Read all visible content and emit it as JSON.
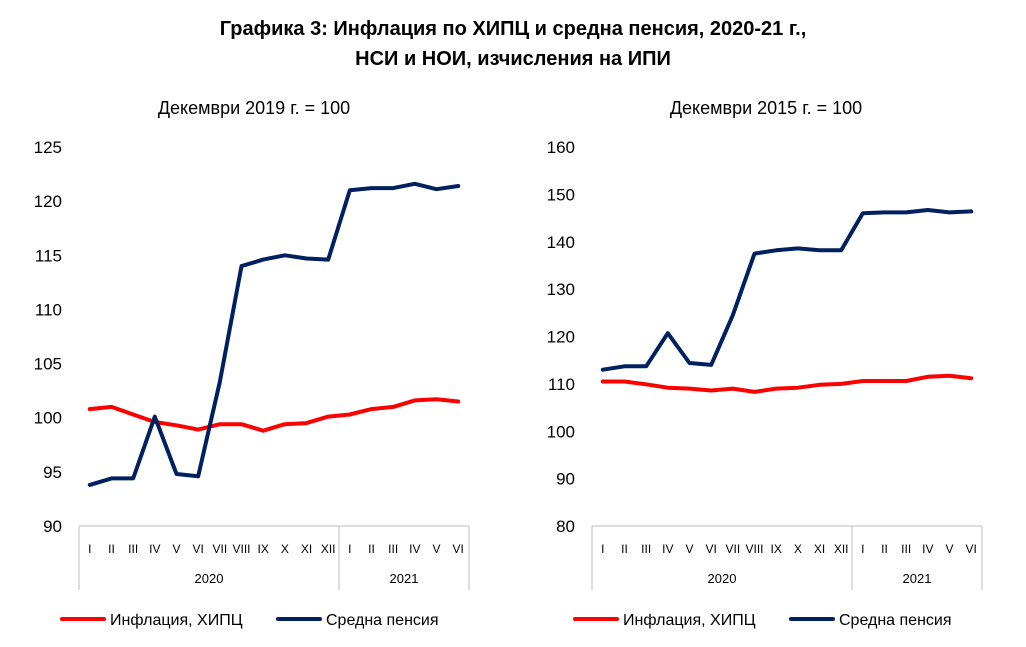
{
  "title_line1": "Графика 3: Инфлация по ХИПЦ и средна пенсия, 2020-21 г.,",
  "title_line2": "НСИ и НОИ, изчисления на ИПИ",
  "colors": {
    "inflation": "#ff0000",
    "pension": "#002060"
  },
  "chart_data": [
    {
      "type": "line",
      "subtitle": "Декември 2019 г. = 100",
      "ylim": [
        90,
        125
      ],
      "yticks": [
        "90",
        "95",
        "100",
        "105",
        "110",
        "115",
        "120",
        "125"
      ],
      "categories": [
        "I",
        "II",
        "III",
        "IV",
        "V",
        "VI",
        "VII",
        "VIII",
        "IX",
        "X",
        "XI",
        "XII",
        "I",
        "II",
        "III",
        "IV",
        "V",
        "VI"
      ],
      "groups": [
        {
          "label": "2020",
          "count": 12
        },
        {
          "label": "2021",
          "count": 6
        }
      ],
      "legend_position": "bottom",
      "grid": false,
      "series": [
        {
          "name": "Инфлация, ХИПЦ",
          "color": "#ff0000",
          "values": [
            100.8,
            101.0,
            100.3,
            99.6,
            99.3,
            98.9,
            99.4,
            99.4,
            98.8,
            99.4,
            99.5,
            100.1,
            100.3,
            100.8,
            101.0,
            101.6,
            101.7,
            101.5
          ]
        },
        {
          "name": "Средна пенсия",
          "color": "#002060",
          "values": [
            93.8,
            94.4,
            94.4,
            100.1,
            94.8,
            94.6,
            103.3,
            114.0,
            114.6,
            115.0,
            114.7,
            114.6,
            121.0,
            121.2,
            121.2,
            121.6,
            121.1,
            121.4
          ]
        }
      ]
    },
    {
      "type": "line",
      "subtitle": "Декември 2015 г.  = 100",
      "ylim": [
        80,
        160
      ],
      "yticks": [
        "80",
        "90",
        "100",
        "110",
        "120",
        "130",
        "140",
        "150",
        "160"
      ],
      "categories": [
        "I",
        "II",
        "III",
        "IV",
        "V",
        "VI",
        "VII",
        "VIII",
        "IX",
        "X",
        "XI",
        "XII",
        "I",
        "II",
        "III",
        "IV",
        "V",
        "VI"
      ],
      "groups": [
        {
          "label": "2020",
          "count": 12
        },
        {
          "label": "2021",
          "count": 6
        }
      ],
      "legend_position": "bottom",
      "grid": false,
      "series": [
        {
          "name": "Инфлация, ХИПЦ",
          "color": "#ff0000",
          "values": [
            110.5,
            110.5,
            109.9,
            109.2,
            109.0,
            108.6,
            109.0,
            108.3,
            109.0,
            109.2,
            109.8,
            110.0,
            110.6,
            110.6,
            110.6,
            111.5,
            111.7,
            111.2
          ]
        },
        {
          "name": "Средна пенсия",
          "color": "#002060",
          "values": [
            113.0,
            113.7,
            113.7,
            120.7,
            114.4,
            114.0,
            124.5,
            137.5,
            138.2,
            138.6,
            138.2,
            138.2,
            146.0,
            146.2,
            146.2,
            146.7,
            146.2,
            146.4
          ]
        }
      ]
    }
  ]
}
